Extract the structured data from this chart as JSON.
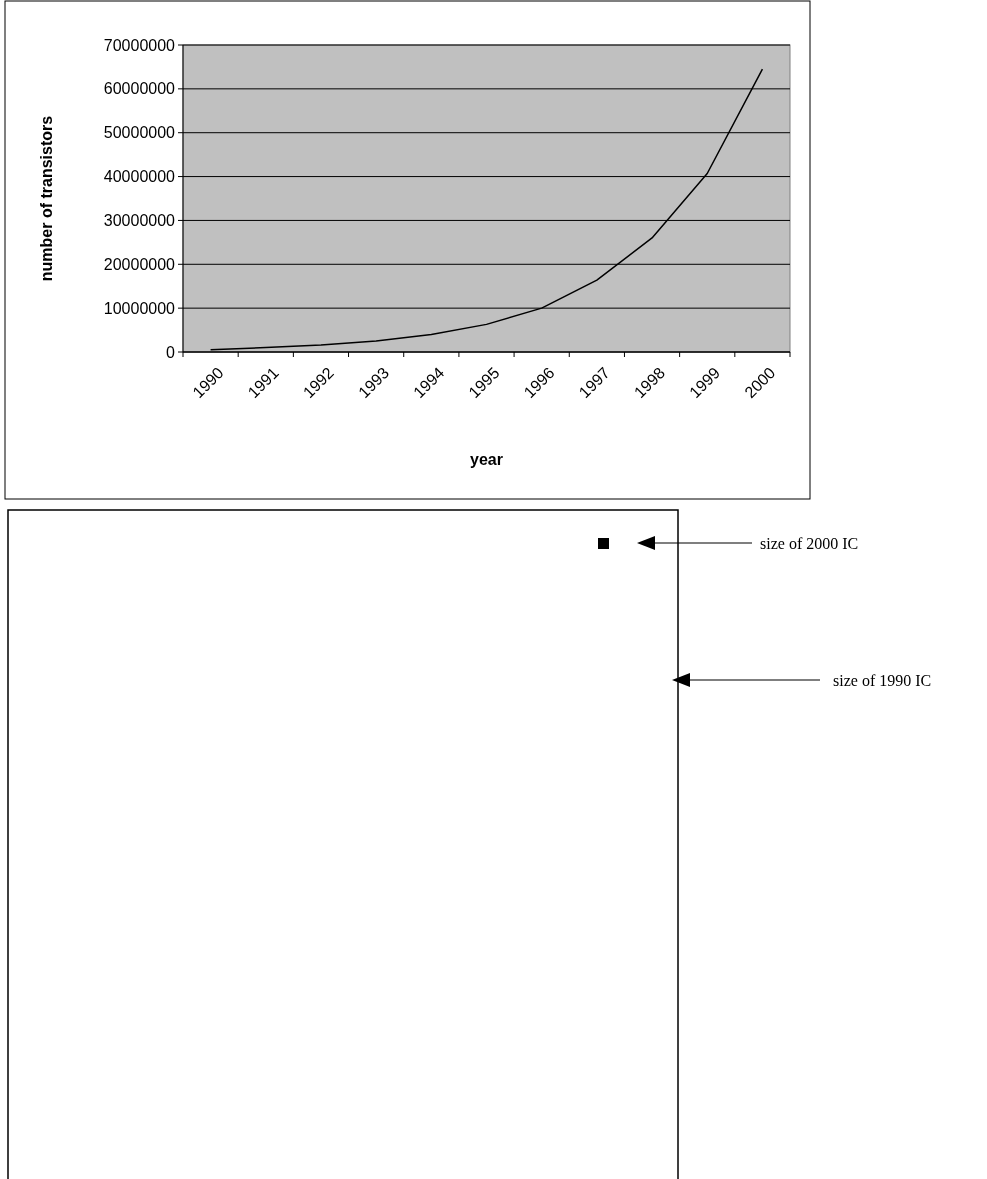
{
  "chart_data": [
    {
      "type": "line",
      "xlabel": "year",
      "ylabel": "number of transistors",
      "categories": [
        "1990",
        "1991",
        "1992",
        "1993",
        "1994",
        "1995",
        "1996",
        "1997",
        "1998",
        "1999",
        "2000"
      ],
      "series": [
        {
          "color": "#000000",
          "values": [
            500000,
            1000000,
            1600000,
            2500000,
            4000000,
            6300000,
            10000000,
            16400000,
            26000000,
            40700000,
            64500000
          ]
        }
      ],
      "ylim": [
        0,
        70000000
      ],
      "yticks": [
        0,
        10000000,
        20000000,
        30000000,
        40000000,
        50000000,
        60000000,
        70000000
      ],
      "grid": "y",
      "marker": "none",
      "line_style": "solid"
    },
    {
      "type": "other",
      "annotations": [
        "size of 2000 IC",
        "size of 1990 IC"
      ]
    }
  ]
}
